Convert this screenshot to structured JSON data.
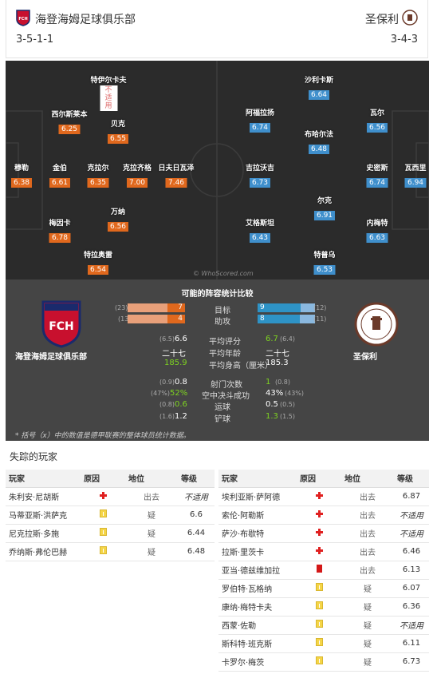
{
  "header": {
    "home_name": "海登海姆足球俱乐部",
    "home_formation": "3-5-1-1",
    "away_name": "圣保利",
    "away_formation": "3-4-3",
    "home_badge_text": "FCH",
    "away_badge_text": "FC ST. PAULI"
  },
  "colors": {
    "home": "#e0681d",
    "away": "#3f8fcc"
  },
  "pitch": {
    "watermark": "© WhoScored.com",
    "home_players": [
      {
        "name": "特伊尔卡夫",
        "rating": "不适用"
      },
      {
        "name": "西尔斯莱本",
        "rating": "6.25"
      },
      {
        "name": "贝克",
        "rating": "6.55"
      },
      {
        "name": "穆勒",
        "rating": "6.38"
      },
      {
        "name": "金伯",
        "rating": "6.61"
      },
      {
        "name": "克拉尔",
        "rating": "6.35"
      },
      {
        "name": "克拉齐格",
        "rating": "7.00"
      },
      {
        "name": "日夫日瓦泽",
        "rating": "7.46"
      },
      {
        "name": "万纳",
        "rating": "6.56"
      },
      {
        "name": "梅因卡",
        "rating": "6.78"
      },
      {
        "name": "特拉奥雷",
        "rating": "6.54"
      }
    ],
    "away_players": [
      {
        "name": "沙利卡斯",
        "rating": "6.64"
      },
      {
        "name": "阿福拉扬",
        "rating": "6.74"
      },
      {
        "name": "瓦尔",
        "rating": "6.56"
      },
      {
        "name": "布哈尔法",
        "rating": "6.48"
      },
      {
        "name": "吉拉沃吉",
        "rating": "6.73"
      },
      {
        "name": "史密斯",
        "rating": "6.74"
      },
      {
        "name": "瓦西里",
        "rating": "6.94"
      },
      {
        "name": "尔克",
        "rating": "6.91"
      },
      {
        "name": "艾格斯坦",
        "rating": "6.43"
      },
      {
        "name": "内梅特",
        "rating": "6.63"
      },
      {
        "name": "特普乌",
        "rating": "6.53"
      }
    ]
  },
  "stats": {
    "title": "可能的阵容统计比较",
    "home_team": "海登海姆足球俱乐部",
    "away_team": "圣保利",
    "goals": {
      "label": "目标",
      "home": "7",
      "home_total": "(23)",
      "away": "9",
      "away_total": "(12)",
      "home_frac": 0.3,
      "away_frac": 0.75
    },
    "assists": {
      "label": "助攻",
      "home": "4",
      "home_total": "(13)",
      "away": "8",
      "away_total": "(11)",
      "home_frac": 0.31,
      "away_frac": 0.73
    },
    "rating": {
      "label": "平均评分",
      "home": "6.6",
      "home_sub": "(6.5)",
      "away": "6.7",
      "away_sub": "(6.4)"
    },
    "age": {
      "label": "平均年龄",
      "home": "二十七",
      "away": "二十七"
    },
    "height": {
      "label": "平均身高（厘米）",
      "home": "185.9",
      "away": "185.3"
    },
    "shots": {
      "label": "射门次数",
      "home": "0.8",
      "home_sub": "(0.9)",
      "away": "1",
      "away_sub": "(0.8)"
    },
    "aerial": {
      "label": "空中决斗成功",
      "home": "52%",
      "home_sub": "(47%)",
      "away": "43%",
      "away_sub": "(43%)"
    },
    "dribble": {
      "label": "运球",
      "home": "0.6",
      "home_sub": "(0.8)",
      "away": "0.5",
      "away_sub": "(0.5)"
    },
    "tackle": {
      "label": "铲球",
      "home": "1.2",
      "home_sub": "(1.6)",
      "away": "1.3",
      "away_sub": "(1.5)"
    },
    "footnote": "* 括号（x）中的数值是德甲联赛的整体球员统计数据。"
  },
  "missing": {
    "title": "失踪的玩家",
    "headers": {
      "player": "玩家",
      "reason": "原因",
      "status": "地位",
      "rating": "等级"
    },
    "home_rows": [
      {
        "name": "朱利安·尼胡斯",
        "reason": "injury",
        "status": "出去",
        "rating": "不适用"
      },
      {
        "name": "马蒂亚斯·洪萨克",
        "reason": "doubt",
        "status": "疑",
        "rating": "6.6"
      },
      {
        "name": "尼克拉斯·多施",
        "reason": "doubt",
        "status": "疑",
        "rating": "6.44"
      },
      {
        "name": "乔纳斯·弗伦巴赫",
        "reason": "doubt",
        "status": "疑",
        "rating": "6.48"
      }
    ],
    "away_rows": [
      {
        "name": "埃利亚斯·萨阿德",
        "reason": "injury",
        "status": "出去",
        "rating": "6.87"
      },
      {
        "name": "索伦·阿勒斯",
        "reason": "injury",
        "status": "出去",
        "rating": "不适用"
      },
      {
        "name": "萨沙·布歇特",
        "reason": "injury",
        "status": "出去",
        "rating": "不适用"
      },
      {
        "name": "拉斯·里茨卡",
        "reason": "injury",
        "status": "出去",
        "rating": "6.46"
      },
      {
        "name": "亚当·德兹维加拉",
        "reason": "red",
        "status": "出去",
        "rating": "6.13"
      },
      {
        "name": "罗伯特·瓦格纳",
        "reason": "doubt",
        "status": "疑",
        "rating": "6.07"
      },
      {
        "name": "康纳·梅特卡夫",
        "reason": "doubt",
        "status": "疑",
        "rating": "6.36"
      },
      {
        "name": "西蒙·佐勒",
        "reason": "doubt",
        "status": "疑",
        "rating": "不适用"
      },
      {
        "name": "斯科特·班克斯",
        "reason": "doubt",
        "status": "疑",
        "rating": "6.11"
      },
      {
        "name": "卡罗尔·梅茨",
        "reason": "doubt",
        "status": "疑",
        "rating": "6.73"
      }
    ]
  }
}
